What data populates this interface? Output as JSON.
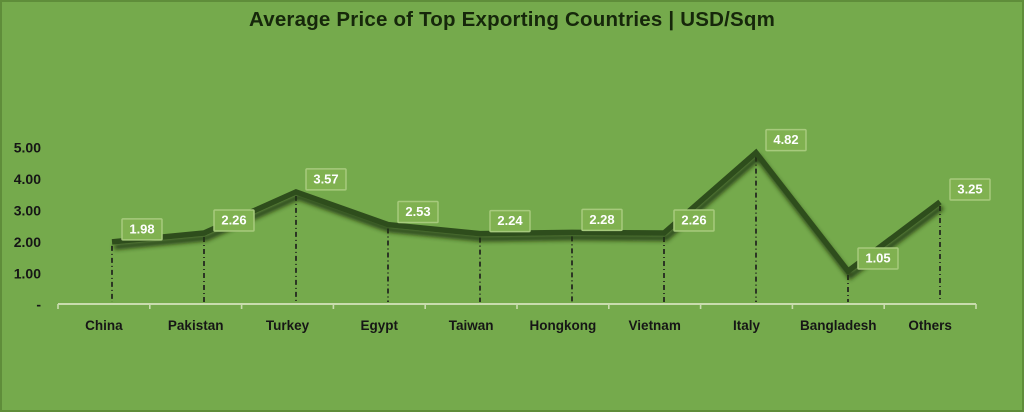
{
  "chart": {
    "title": "Average Price of Top Exporting Countries | USD/Sqm"
  },
  "chart_data": {
    "type": "line",
    "title": "Average Price of Top Exporting Countries | USD/Sqm",
    "categories": [
      "China",
      "Pakistan",
      "Turkey",
      "Egypt",
      "Taiwan",
      "Hongkong",
      "Vietnam",
      "Italy",
      "Bangladesh",
      "Others"
    ],
    "values": [
      1.98,
      2.26,
      3.57,
      2.53,
      2.24,
      2.28,
      2.26,
      4.82,
      1.05,
      3.25
    ],
    "data_labels": [
      "1.98",
      "2.26",
      "3.57",
      "2.53",
      "2.24",
      "2.28",
      "2.26",
      "4.82",
      "1.05",
      "3.25"
    ],
    "ylabel": "",
    "xlabel": "",
    "ylim": [
      0,
      5
    ],
    "y_ticks": [
      {
        "value": 0,
        "label": "-"
      },
      {
        "value": 1,
        "label": "1.00"
      },
      {
        "value": 2,
        "label": "2.00"
      },
      {
        "value": 3,
        "label": "3.00"
      },
      {
        "value": 4,
        "label": "4.00"
      },
      {
        "value": 5,
        "label": "5.00"
      }
    ],
    "legend": "none",
    "grid": false,
    "marker": "none",
    "drop_lines": true,
    "colors": {
      "background": "#75AA4C",
      "line": "#2F4D1B",
      "line_shadow": "#1B3109",
      "data_label_fill": "#80B150",
      "data_label_border": "#A7CA7D",
      "data_label_text": "#FFFFFF",
      "axis_line": "#C9DCAE",
      "axis_text": "#161616",
      "title_text": "#16270B",
      "drop_line": "#1A1A1A"
    }
  }
}
